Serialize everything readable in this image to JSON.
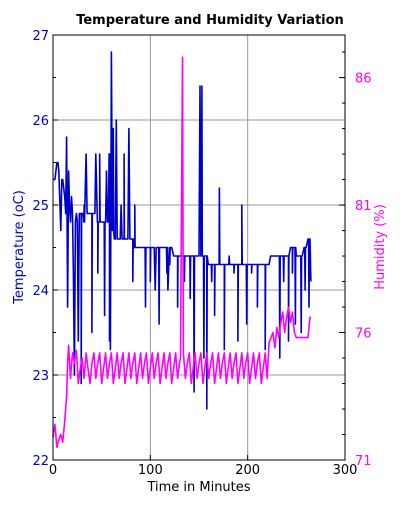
{
  "chart_data": {
    "type": "line",
    "title": "Temperature and Humidity Variation",
    "xlabel": "Time in Minutes",
    "ylabel_left": "Temperature (oC)",
    "ylabel_right": "Humidity (%)",
    "xlim": [
      0,
      300
    ],
    "ylim_left": [
      22,
      27
    ],
    "ylim_right": [
      71,
      87.67
    ],
    "xticks": [
      0,
      100,
      200,
      300
    ],
    "yticks_left": [
      22,
      23,
      24,
      25,
      26,
      27
    ],
    "yticks_right": [
      71,
      76,
      81,
      86
    ],
    "grid": true,
    "series": [
      {
        "axis": "left",
        "color": "#0000cc",
        "x": [
          0,
          2,
          4,
          5,
          6,
          8,
          9,
          10,
          11,
          12,
          13,
          14,
          15,
          16,
          17,
          18,
          19,
          20,
          21,
          22,
          23,
          24,
          25,
          26,
          27,
          28,
          29,
          30,
          31,
          32,
          34,
          35,
          36,
          38,
          40,
          42,
          43,
          44,
          46,
          48,
          50,
          52,
          54,
          55,
          56,
          57,
          58,
          59,
          60,
          61,
          62,
          63,
          64,
          65,
          66,
          67,
          68,
          69,
          70,
          71,
          72,
          73,
          74,
          75,
          76,
          77,
          78,
          79,
          80,
          81,
          82,
          83,
          84,
          85,
          86,
          88,
          90,
          92,
          94,
          96,
          98,
          100,
          102,
          104,
          105,
          106,
          108,
          110,
          112,
          113,
          114,
          116,
          118,
          120,
          122,
          124,
          125,
          126,
          128,
          130,
          132,
          133,
          134,
          136,
          138,
          140,
          142,
          144,
          146,
          147,
          148,
          150,
          151,
          152,
          154,
          156,
          158,
          160,
          161,
          162,
          164,
          166,
          168,
          170,
          172,
          174,
          176,
          178,
          180,
          182,
          184,
          186,
          188,
          190,
          192,
          194,
          196,
          198,
          200,
          202,
          204,
          206,
          208,
          210,
          212,
          214,
          216,
          218,
          220,
          222,
          224,
          226,
          228,
          230,
          232,
          234,
          236,
          238,
          240,
          242,
          244,
          246,
          248,
          250,
          252,
          254,
          256,
          258,
          260,
          262,
          264,
          265
        ],
        "y": [
          25.3,
          25.3,
          25.5,
          25.5,
          25.4,
          24.7,
          25.3,
          25.3,
          25.2,
          25.1,
          24.9,
          25.8,
          23.8,
          25.4,
          25.0,
          24.8,
          25.1,
          24.9,
          24.2,
          23.0,
          24.8,
          24.9,
          24.8,
          23.4,
          24.9,
          24.9,
          24.9,
          24.9,
          24.9,
          24.8,
          25.6,
          24.9,
          24.9,
          24.9,
          24.9,
          24.9,
          24.9,
          25.6,
          24.8,
          24.8,
          24.8,
          24.8,
          24.8,
          25.4,
          24.8,
          24.8,
          25.6,
          23.3,
          26.8,
          24.7,
          24.7,
          24.6,
          24.6,
          26.0,
          24.6,
          24.6,
          24.6,
          24.6,
          25.0,
          24.6,
          24.6,
          24.6,
          24.6,
          24.6,
          24.6,
          24.6,
          25.9,
          24.6,
          24.6,
          24.6,
          24.6,
          24.6,
          24.5,
          24.5,
          24.5,
          24.5,
          24.5,
          24.5,
          24.5,
          24.5,
          24.5,
          24.5,
          24.5,
          24.5,
          24.0,
          24.5,
          24.5,
          24.5,
          24.5,
          24.5,
          24.5,
          24.5,
          24.0,
          24.5,
          24.5,
          24.4,
          24.4,
          24.4,
          24.4,
          24.4,
          24.4,
          24.4,
          24.4,
          24.4,
          24.4,
          24.4,
          24.4,
          24.4,
          24.4,
          24.4,
          24.4,
          24.4,
          26.4,
          24.4,
          24.4,
          24.4,
          24.4,
          24.3,
          24.3,
          24.3,
          24.3,
          24.3,
          24.3,
          24.3,
          24.3,
          24.3,
          24.3,
          24.3,
          24.3,
          24.3,
          24.3,
          24.3,
          24.3,
          24.3,
          24.3,
          24.3,
          24.3,
          24.3,
          24.3,
          24.3,
          24.3,
          24.3,
          24.3,
          24.3,
          24.3,
          24.3,
          24.3,
          24.3,
          24.3,
          24.3,
          24.4,
          24.4,
          24.4,
          24.4,
          24.4,
          24.4,
          24.4,
          24.4,
          24.4,
          24.4,
          24.5,
          24.5,
          24.5,
          24.4,
          24.4,
          24.4,
          24.4,
          24.5,
          24.5,
          24.6,
          24.6,
          24.1
        ],
        "spikes": [
          [
            29,
            22.9
          ],
          [
            32,
            25.0
          ],
          [
            40,
            23.5
          ],
          [
            46,
            24.2
          ],
          [
            48,
            25.6
          ],
          [
            53,
            23.7
          ],
          [
            58,
            23.4
          ],
          [
            62,
            25.9
          ],
          [
            73,
            25.6
          ],
          [
            82,
            24.1
          ],
          [
            84,
            25.0
          ],
          [
            95,
            23.8
          ],
          [
            100,
            24.1
          ],
          [
            109,
            23.6
          ],
          [
            117,
            24.2
          ],
          [
            120,
            24.3
          ],
          [
            128,
            23.8
          ],
          [
            135,
            24.1
          ],
          [
            141,
            23.9
          ],
          [
            145,
            22.8
          ],
          [
            153,
            26.4
          ],
          [
            155,
            23.2
          ],
          [
            158,
            22.6
          ],
          [
            160,
            24.3
          ],
          [
            163,
            24.1
          ],
          [
            166,
            23.7
          ],
          [
            171,
            25.2
          ],
          [
            176,
            23.3
          ],
          [
            181,
            24.4
          ],
          [
            186,
            24.2
          ],
          [
            190,
            23.4
          ],
          [
            194,
            25.0
          ],
          [
            199,
            23.6
          ],
          [
            204,
            24.2
          ],
          [
            210,
            23.8
          ],
          [
            218,
            23.3
          ],
          [
            224,
            24.4
          ],
          [
            233,
            23.2
          ],
          [
            237,
            24.1
          ],
          [
            242,
            23.4
          ],
          [
            246,
            24.2
          ],
          [
            249,
            23.6
          ],
          [
            255,
            23.5
          ],
          [
            259,
            24.0
          ],
          [
            263,
            23.8
          ]
        ]
      },
      {
        "axis": "right",
        "color": "#ff00ff",
        "x": [
          0,
          2,
          4,
          6,
          8,
          10,
          12,
          14,
          15,
          16,
          18,
          20,
          22,
          24,
          26,
          28,
          30,
          32,
          34,
          36,
          38,
          40,
          42,
          44,
          46,
          48,
          50,
          52,
          54,
          56,
          58,
          60,
          62,
          64,
          66,
          68,
          70,
          72,
          74,
          76,
          78,
          80,
          82,
          84,
          86,
          88,
          90,
          92,
          94,
          96,
          98,
          100,
          102,
          104,
          106,
          108,
          110,
          112,
          114,
          116,
          118,
          120,
          122,
          124,
          126,
          128,
          130,
          131,
          132,
          133,
          134,
          136,
          138,
          140,
          142,
          144,
          146,
          148,
          150,
          152,
          154,
          156,
          158,
          160,
          162,
          164,
          166,
          168,
          170,
          172,
          174,
          176,
          178,
          180,
          182,
          184,
          186,
          188,
          190,
          192,
          194,
          196,
          198,
          200,
          202,
          204,
          206,
          208,
          210,
          212,
          214,
          216,
          218,
          220,
          222,
          224,
          226,
          228,
          230,
          232,
          234,
          236,
          238,
          240,
          242,
          244,
          246,
          248,
          250,
          252,
          254,
          256,
          258,
          260,
          262,
          264,
          265
        ],
        "y": [
          71.9,
          72.4,
          71.5,
          71.8,
          72.0,
          71.7,
          72.5,
          73.5,
          74.8,
          75.5,
          74.2,
          75.2,
          74.8,
          75.3,
          74.0,
          74.6,
          75.0,
          74.2,
          75.2,
          74.6,
          74.0,
          74.8,
          75.2,
          74.2,
          74.8,
          75.2,
          74.0,
          74.6,
          75.2,
          74.2,
          74.8,
          75.2,
          74.0,
          74.6,
          75.2,
          74.2,
          74.8,
          75.2,
          74.0,
          74.6,
          75.2,
          74.2,
          74.8,
          75.2,
          74.0,
          74.6,
          75.2,
          74.2,
          74.8,
          75.2,
          74.0,
          74.6,
          75.2,
          74.2,
          74.8,
          75.2,
          74.0,
          74.6,
          75.2,
          74.2,
          74.8,
          75.2,
          74.0,
          74.6,
          75.2,
          74.2,
          74.8,
          75.0,
          80.8,
          86.8,
          75.2,
          74.2,
          74.8,
          75.2,
          74.0,
          74.6,
          75.2,
          74.2,
          74.8,
          75.2,
          74.0,
          74.6,
          75.2,
          74.2,
          74.8,
          75.2,
          74.0,
          74.6,
          75.2,
          74.2,
          74.8,
          75.2,
          74.0,
          74.6,
          75.2,
          74.2,
          74.8,
          75.2,
          74.0,
          74.6,
          75.2,
          74.2,
          74.8,
          75.2,
          74.0,
          74.6,
          75.2,
          74.2,
          74.8,
          75.2,
          74.0,
          74.6,
          75.2,
          74.2,
          75.6,
          75.8,
          76.0,
          75.4,
          76.2,
          75.8,
          76.4,
          76.8,
          76.0,
          76.6,
          77.0,
          76.4,
          76.8,
          76.0,
          75.8,
          75.8,
          75.8,
          75.8,
          75.8,
          75.8,
          75.8,
          76.6,
          76.6
        ]
      }
    ]
  }
}
